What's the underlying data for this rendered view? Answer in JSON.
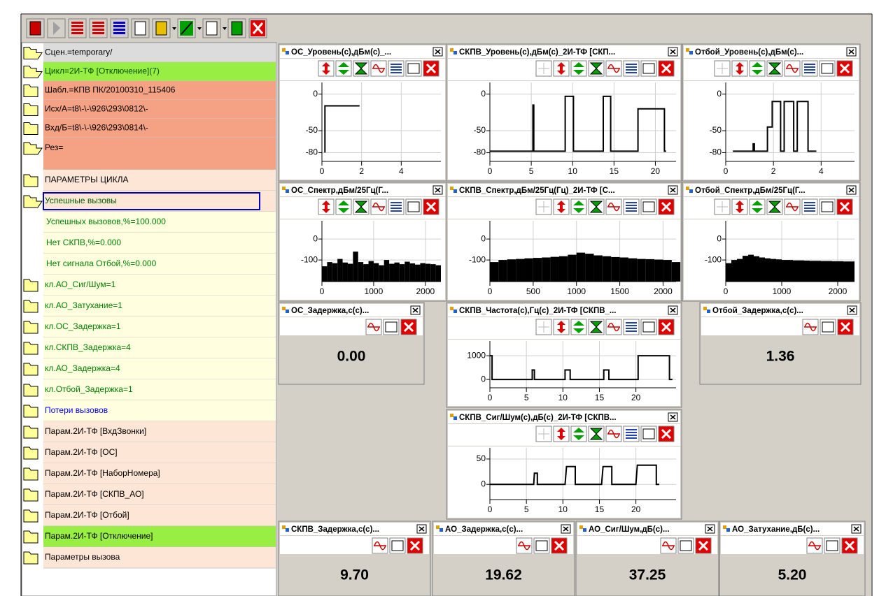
{
  "tree": [
    {
      "label": "Сцен.=temporary/",
      "bg": "#dcdcdc",
      "color": "#000000",
      "icon": "open"
    },
    {
      "label": "Цикл=2И-ТФ [Отключение](7)",
      "bg": "#99ee44",
      "color": "#005000",
      "icon": "open"
    },
    {
      "label": "Шабл.=КПВ ПК/20100310_115406",
      "bg": "#f4a283",
      "color": "#000000",
      "icon": "folder"
    },
    {
      "label": "Исх/А=t8\\-\\-\\926\\293\\0812\\-",
      "bg": "#f4a283",
      "color": "#000000",
      "icon": "folder"
    },
    {
      "label": "Вхд/Б=t8\\-\\-\\926\\293\\0814\\-",
      "bg": "#f4a283",
      "color": "#000000",
      "icon": "folder"
    },
    {
      "label": "Рез=",
      "bg": "#f4a283",
      "color": "#000000",
      "icon": "open"
    },
    {
      "label": "ПАРАМЕТРЫ ЦИКЛА",
      "bg": "#fde6d6",
      "color": "#000000",
      "icon": "folder"
    },
    {
      "label": "Успешные вызовы",
      "bg": "#fde6d6",
      "color": "#006000",
      "icon": "open",
      "selected": true
    },
    {
      "label": "Успешных вызовов,%=100.000",
      "bg": "#ffffe0",
      "color": "#008000"
    },
    {
      "label": "Нет СКПВ,%=0.000",
      "bg": "#ffffe0",
      "color": "#008000"
    },
    {
      "label": "Нет сигнала Отбой,%=0.000",
      "bg": "#ffffe0",
      "color": "#008000"
    },
    {
      "label": "кл.АО_Сиг/Шум=1",
      "bg": "#ffffe0",
      "color": "#008000",
      "icon": "folder"
    },
    {
      "label": "кл.АО_Затухание=1",
      "bg": "#ffffe0",
      "color": "#008000",
      "icon": "folder"
    },
    {
      "label": "кл.ОС_Задержка=1",
      "bg": "#ffffe0",
      "color": "#008000",
      "icon": "folder"
    },
    {
      "label": "кл.СКПВ_Задержка=4",
      "bg": "#ffffe0",
      "color": "#008000",
      "icon": "folder"
    },
    {
      "label": "кл.АО_Задержка=4",
      "bg": "#ffffe0",
      "color": "#008000",
      "icon": "folder"
    },
    {
      "label": "кл.Отбой_Задержка=1",
      "bg": "#ffffe0",
      "color": "#008000",
      "icon": "folder"
    },
    {
      "label": "Потери вызовов",
      "bg": "#ffffe0",
      "color": "#0000ff",
      "icon": "folder"
    },
    {
      "label": "Парам.2И-ТФ [ВхдЗвонки]",
      "bg": "#fde6d6",
      "color": "#000000",
      "icon": "folder"
    },
    {
      "label": "Парам.2И-ТФ [ОС]",
      "bg": "#fde6d6",
      "color": "#000000",
      "icon": "folder"
    },
    {
      "label": "Парам.2И-ТФ [НаборНомера]",
      "bg": "#fde6d6",
      "color": "#000000",
      "icon": "folder"
    },
    {
      "label": "Парам.2И-ТФ [СКПВ_АО]",
      "bg": "#fde6d6",
      "color": "#000000",
      "icon": "folder"
    },
    {
      "label": "Парам.2И-ТФ [Отбой]",
      "bg": "#fde6d6",
      "color": "#000000",
      "icon": "folder"
    },
    {
      "label": "Парам.2И-ТФ [Отключение]",
      "bg": "#99ee44",
      "color": "#000000",
      "icon": "folder"
    },
    {
      "label": "Параметры вызова",
      "bg": "#fde6d6",
      "color": "#000000",
      "icon": "folder"
    }
  ],
  "panels": [
    {
      "title": "ОС_Уровень(с),дБм(с)_...",
      "type": "line",
      "cross": false,
      "x": [
        0.15,
        0.15,
        1.9
      ],
      "values": [
        -80,
        -16,
        -16
      ],
      "xlim": [
        0,
        6
      ],
      "ylim": [
        -92,
        16
      ],
      "xticks": [
        0,
        2,
        4
      ],
      "yticks": [
        0,
        -50,
        -80
      ]
    },
    {
      "title": "СКПВ_Уровень(с),дБм(с)_2И-ТФ [СКП...",
      "type": "line",
      "cross": true,
      "x": [
        0,
        5.2,
        5.2,
        5.3,
        5.3,
        9.1,
        9.1,
        10.1,
        10.1,
        13.7,
        13.7,
        14.6,
        14.6,
        17.9,
        17.9,
        21.1,
        21.1,
        21.3
      ],
      "values": [
        -78,
        -78,
        -15,
        -15,
        -78,
        -78,
        -3,
        -3,
        -78,
        -78,
        -3,
        -3,
        -78,
        -78,
        -20,
        -20,
        -78,
        -78
      ],
      "xlim": [
        0,
        22.5
      ],
      "ylim": [
        -92,
        16
      ],
      "xticks": [
        0,
        5,
        10,
        15,
        20
      ],
      "yticks": [
        0,
        -50,
        -80
      ]
    },
    {
      "title": "Отбой_Уровень(с),дБм(с)...",
      "type": "line",
      "cross": true,
      "x": [
        0.3,
        1.15,
        1.15,
        1.2,
        1.2,
        1.75,
        1.75,
        1.95,
        1.95,
        2.3,
        2.3,
        2.45,
        2.45,
        2.85,
        2.85,
        3.0,
        3.0,
        3.45,
        3.45,
        3.8
      ],
      "values": [
        -78,
        -78,
        -68,
        -68,
        -78,
        -78,
        -45,
        -45,
        -10,
        -10,
        -78,
        -78,
        -10,
        -10,
        -78,
        -78,
        -10,
        -10,
        -78,
        -78
      ],
      "xlim": [
        0,
        5.4
      ],
      "ylim": [
        -92,
        16
      ],
      "xticks": [
        0,
        2,
        4
      ],
      "yticks": [
        0,
        -50,
        -80
      ]
    },
    {
      "title": "ОС_Спектр,дБм/25Гц(Г...",
      "type": "bars",
      "cross": false,
      "x": [
        0,
        100,
        200,
        300,
        400,
        500,
        600,
        700,
        800,
        900,
        1000,
        1100,
        1200,
        1300,
        1400,
        1500,
        1600,
        1700,
        1800,
        1900,
        2000,
        2100,
        2200
      ],
      "values": [
        -130,
        -110,
        -115,
        -95,
        -112,
        -118,
        -60,
        -110,
        -120,
        -105,
        -115,
        -125,
        -100,
        -118,
        -112,
        -120,
        -108,
        -116,
        -122,
        -115,
        -118,
        -120,
        -125
      ],
      "xlim": [
        0,
        2300
      ],
      "ylim": [
        -203,
        87
      ],
      "xticks": [
        0,
        1000,
        2000
      ],
      "yticks": [
        0,
        -100
      ]
    },
    {
      "title": "СКПВ_Спектр,дБм/25Гц(Гц)_2И-ТФ [С...",
      "type": "bars",
      "cross": true,
      "x": [
        0,
        100,
        200,
        300,
        400,
        500,
        600,
        700,
        800,
        900,
        1000,
        1100,
        1200,
        1300,
        1400,
        1500,
        1600,
        1700,
        1800,
        1900,
        2000,
        2100
      ],
      "values": [
        -110,
        -100,
        -97,
        -95,
        -92,
        -90,
        -88,
        -85,
        -82,
        -75,
        -65,
        -70,
        -78,
        -82,
        -86,
        -88,
        -92,
        -95,
        -96,
        -98,
        -100,
        -110
      ],
      "xlim": [
        0,
        2150
      ],
      "ylim": [
        -203,
        87
      ],
      "xticks": [
        0,
        500,
        1000,
        1500,
        2000
      ],
      "yticks": [
        0,
        -100
      ]
    },
    {
      "title": "Отбой_Спектр,дБм/25Гц(Г...",
      "type": "bars",
      "cross": true,
      "x": [
        0,
        100,
        200,
        300,
        400,
        500,
        600,
        700,
        800,
        900,
        1000,
        1100,
        1200,
        1300,
        1400,
        1500,
        1600,
        1700,
        1800,
        1900,
        2000,
        2100,
        2200
      ],
      "values": [
        -115,
        -100,
        -95,
        -80,
        -75,
        -82,
        -88,
        -92,
        -95,
        -97,
        -100,
        -100,
        -102,
        -102,
        -103,
        -104,
        -104,
        -105,
        -105,
        -106,
        -106,
        -107,
        -107
      ],
      "xlim": [
        0,
        2300
      ],
      "ylim": [
        -203,
        87
      ],
      "xticks": [
        0,
        1000,
        2000
      ],
      "yticks": [
        0,
        -100
      ]
    },
    {
      "title": "ОС_Задержка,с(с)...",
      "type": "value",
      "value": "0.00"
    },
    {
      "title": "СКПВ_Частота(с),Гц(с)_2И-ТФ [СКПВ_...",
      "type": "line",
      "cross": true,
      "x": [
        0,
        0.3,
        0.3,
        5.8,
        5.8,
        6.1,
        6.1,
        10.3,
        10.3,
        11.0,
        11.0,
        15.6,
        15.6,
        16.3,
        16.3,
        20.3,
        20.3,
        24.6,
        24.6,
        25
      ],
      "values": [
        1000,
        1000,
        0,
        0,
        400,
        400,
        0,
        0,
        400,
        400,
        0,
        0,
        400,
        400,
        0,
        0,
        1000,
        1000,
        0,
        0
      ],
      "xlim": [
        0,
        25.5
      ],
      "ylim": [
        -350,
        1620
      ],
      "xticks": [
        0,
        5,
        10,
        15,
        20
      ],
      "yticks": [
        1000,
        0
      ]
    },
    {
      "title": "Отбой_Задержка,с(с)...",
      "type": "value",
      "value": "1.36"
    },
    {
      "title": "СКПВ_Сиг/Шум(с),дБ(с)_2И-ТФ [СКПВ...",
      "type": "line",
      "cross": true,
      "x": [
        0,
        6.0,
        6.1,
        6.5,
        6.5,
        10.3,
        10.5,
        11.7,
        11.7,
        15.3,
        15.5,
        16.7,
        16.7,
        20.0,
        20.2,
        22.8,
        22.8,
        23.2
      ],
      "values": [
        0,
        0,
        22,
        22,
        0,
        0,
        35,
        35,
        0,
        0,
        35,
        35,
        0,
        0,
        38,
        38,
        0,
        0
      ],
      "xlim": [
        0,
        25.5
      ],
      "ylim": [
        -30,
        72
      ],
      "xticks": [
        0,
        5,
        10,
        15,
        20
      ],
      "yticks": [
        50,
        0
      ]
    },
    {
      "title": "СКПВ_Задержка,с(с)...",
      "type": "value",
      "value": "9.70"
    },
    {
      "title": "АО_Задержка,с(с)...",
      "type": "value",
      "value": "19.62"
    },
    {
      "title": "АО_Сиг/Шум,дБ(с)...",
      "type": "value",
      "value": "37.25"
    },
    {
      "title": "АО_Затухание,дБ(с)...",
      "type": "value",
      "value": "5.20"
    }
  ]
}
